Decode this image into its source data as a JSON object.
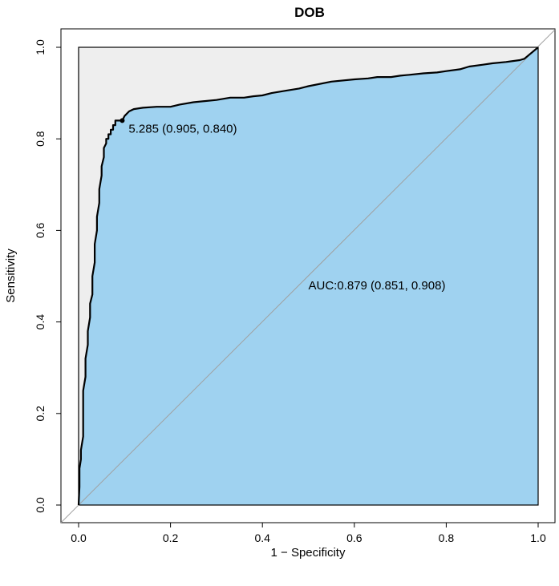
{
  "chart_data": {
    "type": "line",
    "title": "DOB",
    "xlabel": "1 − Specificity",
    "ylabel": "Sensitivity",
    "xlim": [
      0,
      1
    ],
    "ylim": [
      0,
      1
    ],
    "x_ticks": [
      "0.0",
      "0.2",
      "0.4",
      "0.6",
      "0.8",
      "1.0"
    ],
    "y_ticks": [
      "0.0",
      "0.2",
      "0.4",
      "0.6",
      "0.8",
      "1.0"
    ],
    "grid": false,
    "series": [
      {
        "values_x": [
          0,
          0.002,
          0.002,
          0.005,
          0.005,
          0.01,
          0.01,
          0.015,
          0.015,
          0.02,
          0.02,
          0.025,
          0.025,
          0.03,
          0.03,
          0.035,
          0.035,
          0.04,
          0.04,
          0.045,
          0.045,
          0.05,
          0.05,
          0.055,
          0.055,
          0.06,
          0.06,
          0.065,
          0.065,
          0.07,
          0.07,
          0.075,
          0.075,
          0.08,
          0.08,
          0.09,
          0.09,
          0.095,
          0.1,
          0.11,
          0.12,
          0.14,
          0.17,
          0.2,
          0.22,
          0.25,
          0.3,
          0.33,
          0.36,
          0.38,
          0.4,
          0.42,
          0.45,
          0.48,
          0.5,
          0.55,
          0.6,
          0.63,
          0.65,
          0.68,
          0.7,
          0.72,
          0.75,
          0.78,
          0.8,
          0.83,
          0.85,
          0.88,
          0.9,
          0.93,
          0.96,
          0.97,
          1.0
        ],
        "values_y": [
          0,
          0.04,
          0.08,
          0.1,
          0.12,
          0.15,
          0.25,
          0.28,
          0.32,
          0.35,
          0.38,
          0.41,
          0.44,
          0.46,
          0.5,
          0.53,
          0.57,
          0.6,
          0.63,
          0.66,
          0.69,
          0.72,
          0.74,
          0.76,
          0.78,
          0.79,
          0.8,
          0.8,
          0.81,
          0.81,
          0.82,
          0.82,
          0.83,
          0.83,
          0.84,
          0.84,
          0.84,
          0.84,
          0.85,
          0.86,
          0.865,
          0.868,
          0.87,
          0.87,
          0.875,
          0.88,
          0.885,
          0.89,
          0.89,
          0.893,
          0.895,
          0.9,
          0.905,
          0.91,
          0.915,
          0.925,
          0.93,
          0.932,
          0.935,
          0.935,
          0.938,
          0.94,
          0.943,
          0.945,
          0.948,
          0.952,
          0.958,
          0.962,
          0.965,
          0.968,
          0.972,
          0.975,
          1.0
        ]
      }
    ],
    "colors": {
      "auc_fill": "#9fd2f0",
      "upper_fill": "#eeeeee",
      "curve": "#000000",
      "diagonal": "#a0a0a0"
    },
    "threshold_point": {
      "x": 0.095,
      "y": 0.84,
      "label": "5.285 (0.905, 0.840)"
    },
    "auc_label": {
      "x": 0.5,
      "y": 0.48,
      "text": "AUC:0.879 (0.851, 0.908)"
    }
  }
}
